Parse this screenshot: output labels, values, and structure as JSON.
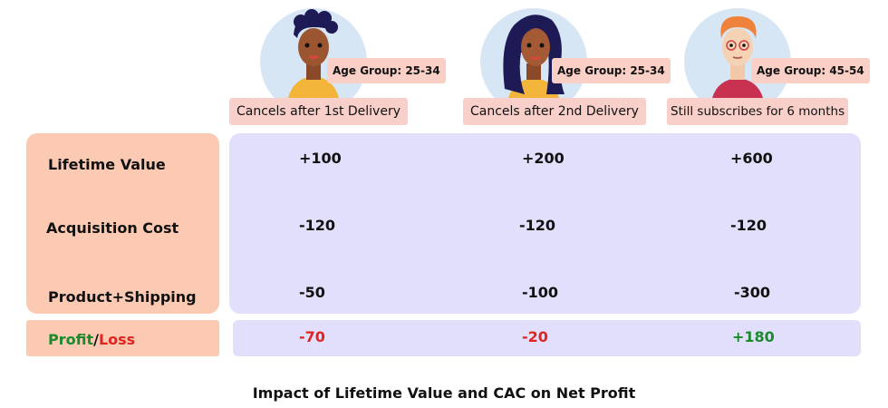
{
  "personas": [
    {
      "age_group": "Age Group: 25-34",
      "behavior": "Cancels after 1st Delivery"
    },
    {
      "age_group": "Age Group: 25-34",
      "behavior": "Cancels after 2nd Delivery"
    },
    {
      "age_group": "Age Group: 45-54",
      "behavior": "Still subscribes for 6 months"
    }
  ],
  "rows": {
    "lifetime_value": {
      "label": "Lifetime Value",
      "values": [
        "+100",
        "+200",
        "+600"
      ]
    },
    "acquisition_cost": {
      "label": "Acquisition Cost",
      "values": [
        "-120",
        "-120",
        "-120"
      ]
    },
    "product_shipping": {
      "label": "Product+Shipping",
      "values": [
        "-50",
        "-100",
        "-300"
      ]
    },
    "profit_loss": {
      "label_profit": "Profit",
      "label_slash": "/",
      "label_loss": "Loss",
      "values": [
        "-70",
        "-20",
        "+180"
      ]
    }
  },
  "caption": "Impact of Lifetime Value and CAC on Net Profit",
  "colors": {
    "label_panel": "#fccab3",
    "values_panel": "#e2dffc",
    "badge": "#f9cfc6",
    "profit": "#1b8a2d",
    "loss": "#e0241f"
  }
}
